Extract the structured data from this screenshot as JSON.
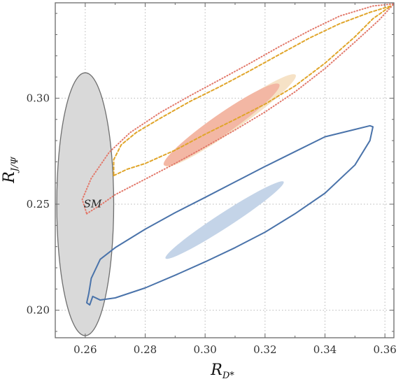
{
  "chart_data": {
    "type": "scatter",
    "title": "",
    "xlabel_main": "R",
    "xlabel_sub": "D*",
    "ylabel_main": "R",
    "ylabel_sub": "J/Ψ",
    "xlim": [
      0.25,
      0.363
    ],
    "ylim": [
      0.187,
      0.345
    ],
    "x_ticks": [
      0.26,
      0.28,
      0.3,
      0.32,
      0.34,
      0.36
    ],
    "x_tick_labels": [
      "0.26",
      "0.28",
      "0.30",
      "0.32",
      "0.34",
      "0.36"
    ],
    "y_ticks": [
      0.2,
      0.25,
      0.3
    ],
    "y_tick_labels": [
      "0.20",
      "0.25",
      "0.30"
    ],
    "x_minor_step": 0.01,
    "y_minor_step": 0.01,
    "grid": true,
    "annotations": [
      {
        "text": "SM",
        "x": 0.2625,
        "y": 0.2485
      }
    ],
    "regions": [
      {
        "id": "sm",
        "shape": "ellipse",
        "cx": 0.26,
        "cy": 0.25,
        "rx": 0.0095,
        "ry": 0.062,
        "fill": "#d9d9d9",
        "stroke": "#6e6e6e"
      },
      {
        "id": "blue-fill",
        "shape": "ellipse",
        "cx": 0.3065,
        "cy": 0.2425,
        "rx": 0.0235,
        "ry": 0.0035,
        "angle_deg": -33,
        "fill": "#c4d4e8"
      },
      {
        "id": "orange-fill-pale",
        "shape": "ellipse",
        "cx": 0.3085,
        "cy": 0.2895,
        "rx": 0.0265,
        "ry": 0.0048,
        "angle_deg": -35,
        "fill": "#f6e2c6"
      },
      {
        "id": "pink-fill",
        "shape": "ellipse",
        "cx": 0.3055,
        "cy": 0.2875,
        "rx": 0.0235,
        "ry": 0.0048,
        "angle_deg": -35,
        "fill": "#f3b7a4"
      }
    ],
    "contours": [
      {
        "id": "blue-contour",
        "color": "#4a73aa",
        "style": "solid",
        "points": [
          [
            0.2615,
            0.2025
          ],
          [
            0.2625,
            0.2065
          ],
          [
            0.265,
            0.2048
          ],
          [
            0.27,
            0.2058
          ],
          [
            0.28,
            0.2105
          ],
          [
            0.29,
            0.2165
          ],
          [
            0.3,
            0.2228
          ],
          [
            0.31,
            0.2295
          ],
          [
            0.32,
            0.2368
          ],
          [
            0.33,
            0.2455
          ],
          [
            0.34,
            0.2552
          ],
          [
            0.35,
            0.2685
          ],
          [
            0.355,
            0.28
          ],
          [
            0.356,
            0.2865
          ],
          [
            0.355,
            0.287
          ],
          [
            0.34,
            0.2818
          ],
          [
            0.33,
            0.2748
          ],
          [
            0.32,
            0.2678
          ],
          [
            0.31,
            0.2605
          ],
          [
            0.3,
            0.2532
          ],
          [
            0.29,
            0.246
          ],
          [
            0.28,
            0.2382
          ],
          [
            0.27,
            0.2295
          ],
          [
            0.265,
            0.224
          ],
          [
            0.262,
            0.215
          ],
          [
            0.2612,
            0.208
          ],
          [
            0.2605,
            0.2035
          ],
          [
            0.2615,
            0.2025
          ]
        ]
      },
      {
        "id": "orange-dashed-contour",
        "color": "#e0a52a",
        "style": "dashed",
        "points": [
          [
            0.2695,
            0.2635
          ],
          [
            0.274,
            0.2665
          ],
          [
            0.28,
            0.2692
          ],
          [
            0.29,
            0.2755
          ],
          [
            0.3,
            0.283
          ],
          [
            0.31,
            0.29
          ],
          [
            0.32,
            0.2972
          ],
          [
            0.33,
            0.3058
          ],
          [
            0.34,
            0.3165
          ],
          [
            0.35,
            0.329
          ],
          [
            0.356,
            0.3375
          ],
          [
            0.362,
            0.3435
          ],
          [
            0.355,
            0.3405
          ],
          [
            0.345,
            0.3352
          ],
          [
            0.335,
            0.3285
          ],
          [
            0.325,
            0.3208
          ],
          [
            0.315,
            0.313
          ],
          [
            0.305,
            0.3055
          ],
          [
            0.295,
            0.2985
          ],
          [
            0.285,
            0.2905
          ],
          [
            0.277,
            0.2838
          ],
          [
            0.272,
            0.278
          ],
          [
            0.2695,
            0.271
          ],
          [
            0.2695,
            0.2635
          ]
        ]
      },
      {
        "id": "red-dotted-contour",
        "color": "#e2786a",
        "style": "dotted",
        "points": [
          [
            0.2605,
            0.2455
          ],
          [
            0.266,
            0.2505
          ],
          [
            0.27,
            0.2545
          ],
          [
            0.28,
            0.2618
          ],
          [
            0.29,
            0.2692
          ],
          [
            0.3,
            0.277
          ],
          [
            0.31,
            0.285
          ],
          [
            0.32,
            0.2935
          ],
          [
            0.33,
            0.303
          ],
          [
            0.34,
            0.314
          ],
          [
            0.35,
            0.3265
          ],
          [
            0.358,
            0.3368
          ],
          [
            0.363,
            0.3445
          ],
          [
            0.356,
            0.3435
          ],
          [
            0.345,
            0.3388
          ],
          [
            0.335,
            0.332
          ],
          [
            0.325,
            0.3245
          ],
          [
            0.315,
            0.3165
          ],
          [
            0.305,
            0.3088
          ],
          [
            0.295,
            0.3012
          ],
          [
            0.285,
            0.2932
          ],
          [
            0.275,
            0.2838
          ],
          [
            0.268,
            0.2745
          ],
          [
            0.262,
            0.2622
          ],
          [
            0.259,
            0.2522
          ],
          [
            0.2605,
            0.2455
          ]
        ]
      }
    ]
  }
}
